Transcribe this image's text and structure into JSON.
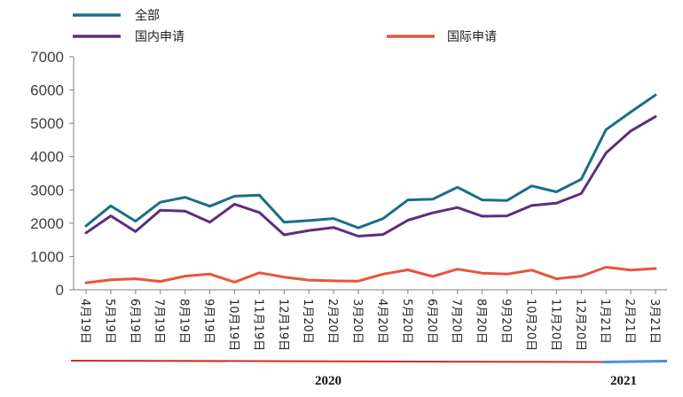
{
  "chart_data": {
    "type": "line",
    "categories": [
      "4月19日",
      "5月19日",
      "6月19日",
      "7月19日",
      "8月19日",
      "9月19日",
      "10月19日",
      "11月19日",
      "12月19日",
      "1月20日",
      "2月20日",
      "3月20日",
      "4月20日",
      "5月20日",
      "6月20日",
      "7月20日",
      "8月20日",
      "9月20日",
      "10月20日",
      "11月20日",
      "12月20日",
      "1月21日",
      "2月21日",
      "3月21日"
    ],
    "series": [
      {
        "name": "全部",
        "color": "#1a6e8a",
        "values": [
          1920,
          2520,
          2060,
          2630,
          2780,
          2510,
          2810,
          2840,
          2030,
          2080,
          2140,
          1860,
          2140,
          2700,
          2720,
          3080,
          2700,
          2680,
          3120,
          2940,
          3320,
          4810,
          5340,
          5850
        ]
      },
      {
        "name": "国内申请",
        "color": "#5e2d7d",
        "values": [
          1710,
          2220,
          1750,
          2390,
          2360,
          2030,
          2570,
          2320,
          1650,
          1780,
          1870,
          1610,
          1660,
          2090,
          2310,
          2470,
          2210,
          2220,
          2530,
          2600,
          2890,
          4110,
          4770,
          5200
        ]
      },
      {
        "name": "国际申请",
        "color": "#e8553a",
        "values": [
          210,
          300,
          330,
          250,
          410,
          470,
          230,
          510,
          380,
          290,
          270,
          260,
          470,
          600,
          400,
          620,
          500,
          470,
          590,
          330,
          410,
          680,
          590,
          640
        ]
      }
    ],
    "ylim": [
      0,
      7000
    ],
    "yticks": [
      "0",
      "1000",
      "2000",
      "3000",
      "4000",
      "5000",
      "6000",
      "7000"
    ],
    "years": [
      {
        "label": "2020",
        "color": "#d42a2a"
      },
      {
        "label": "2021",
        "color": "#4d8fd6"
      }
    ],
    "grid": false,
    "legend_position": "top"
  }
}
